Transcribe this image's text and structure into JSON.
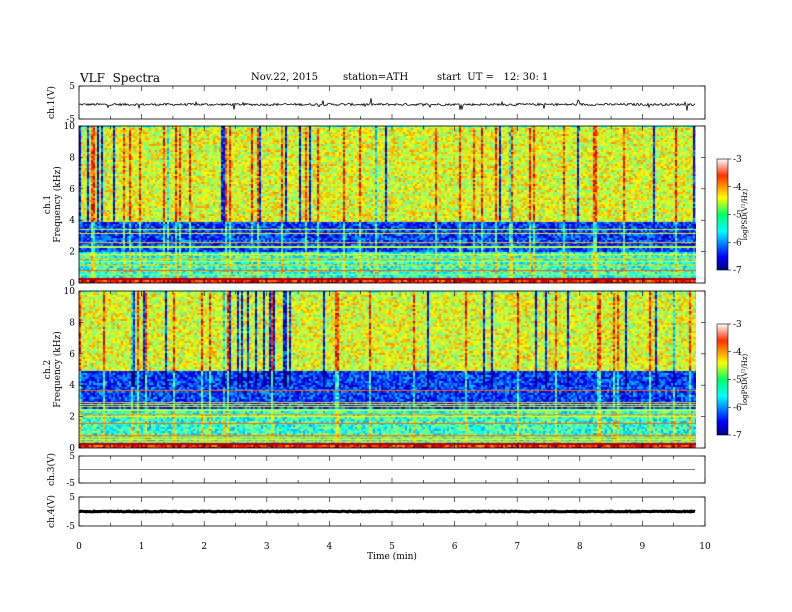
{
  "header": {
    "title": "VLF  Spectra",
    "date": "Nov.22, 2015",
    "station": "station=ATH",
    "start_time": "start  UT =   12: 30: 1"
  },
  "chart_data": [
    {
      "type": "line",
      "ylabel": "ch.1(V)",
      "ylim": [
        -5,
        5
      ],
      "yticks": [
        "5",
        "-5"
      ],
      "baseline": -0.6,
      "noise_amplitude": 0.35,
      "color": "#000000"
    },
    {
      "type": "heatmap",
      "ylabel": [
        "ch.1",
        "Frequency (kHz)"
      ],
      "ylim": [
        0,
        10
      ],
      "yticks": [
        "0",
        "2",
        "4",
        "6",
        "8",
        "10"
      ],
      "colorbar": {
        "label": "logPSD(V²/Hz)",
        "range": [
          -7,
          -3
        ],
        "ticks": [
          "-3",
          "-4",
          "-5",
          "-6",
          "-7"
        ]
      },
      "bands": [
        {
          "from": 0,
          "to": 0.3,
          "level": "high"
        },
        {
          "from": 0.3,
          "to": 2,
          "level": "mid"
        },
        {
          "from": 2,
          "to": 4,
          "level": "low"
        },
        {
          "from": 4,
          "to": 10,
          "level": "mid-high"
        }
      ]
    },
    {
      "type": "heatmap",
      "ylabel": [
        "ch.2",
        "Frequency (kHz)"
      ],
      "ylim": [
        0,
        10
      ],
      "yticks": [
        "0",
        "2",
        "4",
        "6",
        "8",
        "10"
      ],
      "colorbar": {
        "label": "logPSD(V²/Hz)",
        "range": [
          -7,
          -3
        ],
        "ticks": [
          "-3",
          "-4",
          "-5",
          "-6",
          "-7"
        ]
      },
      "bands": [
        {
          "from": 0,
          "to": 0.3,
          "level": "high"
        },
        {
          "from": 0.3,
          "to": 2.6,
          "level": "mid"
        },
        {
          "from": 2.6,
          "to": 5,
          "level": "low"
        },
        {
          "from": 5,
          "to": 10,
          "level": "mid-high"
        }
      ]
    },
    {
      "type": "line",
      "ylabel": "ch.3(V)",
      "ylim": [
        -5,
        5
      ],
      "yticks": [
        "5",
        "-5"
      ],
      "baseline": 0,
      "noise_amplitude": 0.0,
      "color": "#000000"
    },
    {
      "type": "line",
      "ylabel": "ch.4(V)",
      "ylim": [
        -5,
        5
      ],
      "yticks": [
        "5",
        "-5"
      ],
      "baseline": 0,
      "noise_amplitude": 0.15,
      "color": "#000000"
    }
  ],
  "x_axis": {
    "label": "Time  (min)",
    "range": [
      0,
      10
    ],
    "ticks": [
      "0",
      "1",
      "2",
      "3",
      "4",
      "5",
      "6",
      "7",
      "8",
      "9",
      "10"
    ],
    "data_end": 9.85
  },
  "colors": {
    "spectrum_low": "#00007f",
    "spectrum_high": "#7f0000"
  }
}
